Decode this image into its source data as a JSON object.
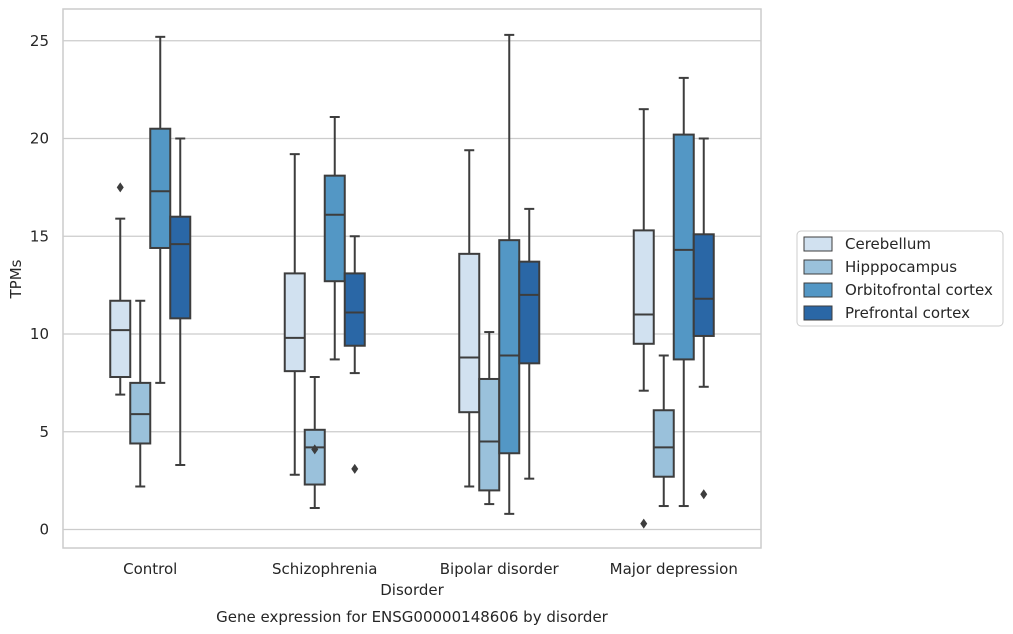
{
  "chart_data": {
    "type": "box",
    "title": "",
    "caption": "Gene expression for ENSG00000148606 by disorder",
    "xlabel": "Disorder",
    "ylabel": "TPMs",
    "ylim": [
      -0.9,
      26.5
    ],
    "yticks": [
      0,
      5,
      10,
      15,
      20,
      25
    ],
    "grid": "horizontal",
    "legend_position": "right",
    "categories": [
      "Control",
      "Schizophrenia",
      "Bipolar disorder",
      "Major depression"
    ],
    "series": [
      {
        "name": "Cerebellum",
        "color": "#d1e1f0",
        "boxes": [
          {
            "whislo": 6.9,
            "q1": 7.8,
            "med": 10.2,
            "q3": 11.7,
            "whishi": 15.9,
            "fliers": [
              17.5
            ]
          },
          {
            "whislo": 2.8,
            "q1": 8.1,
            "med": 9.8,
            "q3": 13.1,
            "whishi": 19.2,
            "fliers": []
          },
          {
            "whislo": 2.2,
            "q1": 6.0,
            "med": 8.8,
            "q3": 14.1,
            "whishi": 19.4,
            "fliers": []
          },
          {
            "whislo": 7.1,
            "q1": 9.5,
            "med": 11.0,
            "q3": 15.3,
            "whishi": 21.5,
            "fliers": [
              0.3
            ]
          }
        ]
      },
      {
        "name": "Hipppocampus",
        "color": "#9ac1db",
        "boxes": [
          {
            "whislo": 2.2,
            "q1": 4.4,
            "med": 5.9,
            "q3": 7.5,
            "whishi": 11.7,
            "fliers": []
          },
          {
            "whislo": 1.1,
            "q1": 2.3,
            "med": 4.2,
            "q3": 5.1,
            "whishi": 7.8,
            "fliers": [
              4.1
            ]
          },
          {
            "whislo": 1.3,
            "q1": 2.0,
            "med": 4.5,
            "q3": 7.7,
            "whishi": 10.1,
            "fliers": []
          },
          {
            "whislo": 1.2,
            "q1": 2.7,
            "med": 4.2,
            "q3": 6.1,
            "whishi": 8.9,
            "fliers": []
          }
        ]
      },
      {
        "name": "Orbitofrontal cortex",
        "color": "#5397c5",
        "boxes": [
          {
            "whislo": 7.5,
            "q1": 14.4,
            "med": 17.3,
            "q3": 20.5,
            "whishi": 25.2,
            "fliers": []
          },
          {
            "whislo": 8.7,
            "q1": 12.7,
            "med": 16.1,
            "q3": 18.1,
            "whishi": 21.1,
            "fliers": []
          },
          {
            "whislo": 0.8,
            "q1": 3.9,
            "med": 8.9,
            "q3": 14.8,
            "whishi": 25.3,
            "fliers": []
          },
          {
            "whislo": 1.2,
            "q1": 8.7,
            "med": 14.3,
            "q3": 20.2,
            "whishi": 23.1,
            "fliers": []
          }
        ]
      },
      {
        "name": "Prefrontal cortex",
        "color": "#2a67a6",
        "boxes": [
          {
            "whislo": 3.3,
            "q1": 10.8,
            "med": 14.6,
            "q3": 16.0,
            "whishi": 20.0,
            "fliers": []
          },
          {
            "whislo": 8.0,
            "q1": 9.4,
            "med": 11.1,
            "q3": 13.1,
            "whishi": 15.0,
            "fliers": [
              3.1
            ]
          },
          {
            "whislo": 2.6,
            "q1": 8.5,
            "med": 12.0,
            "q3": 13.7,
            "whishi": 16.4,
            "fliers": []
          },
          {
            "whislo": 7.3,
            "q1": 9.9,
            "med": 11.8,
            "q3": 15.1,
            "whishi": 20.0,
            "fliers": [
              1.8
            ]
          }
        ]
      }
    ]
  }
}
